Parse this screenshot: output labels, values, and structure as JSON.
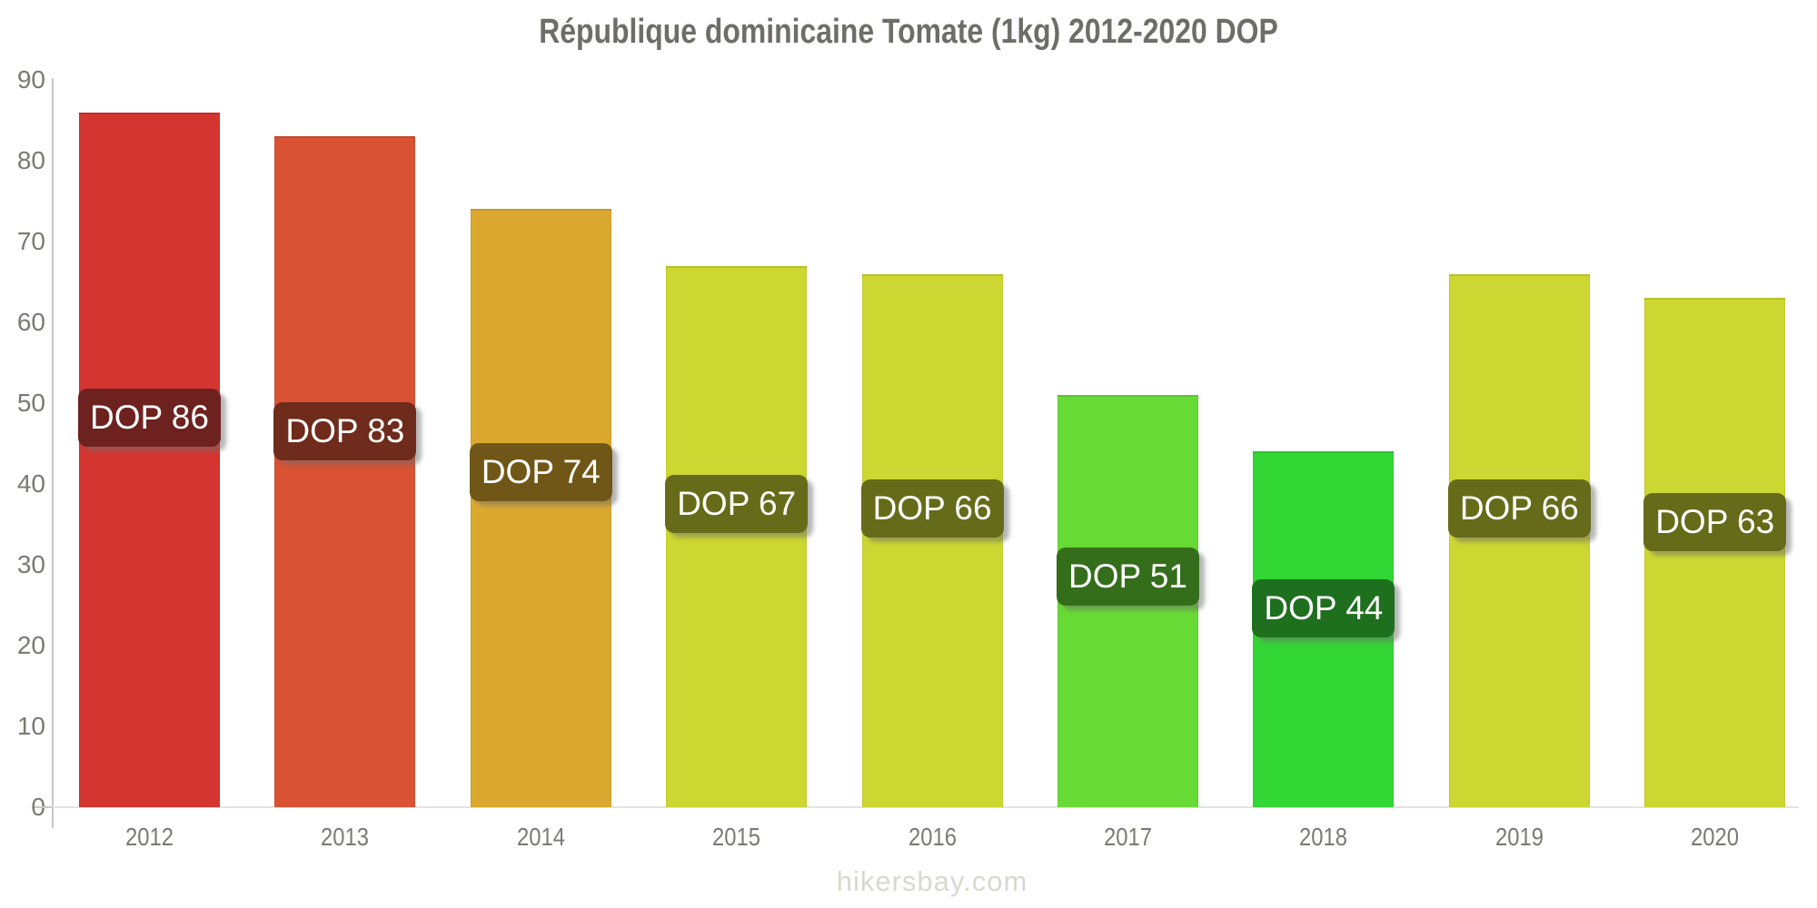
{
  "chart_data": {
    "type": "bar",
    "title": "République dominicaine Tomate (1kg) 2012-2020 DOP",
    "categories": [
      "2012",
      "2013",
      "2014",
      "2015",
      "2016",
      "2017",
      "2018",
      "2019",
      "2020"
    ],
    "values": [
      86,
      83,
      74,
      67,
      66,
      51,
      44,
      66,
      63
    ],
    "bar_labels": [
      "DOP 86",
      "DOP 83",
      "DOP 74",
      "DOP 67",
      "DOP 66",
      "DOP 51",
      "DOP 44",
      "DOP 66",
      "DOP 63"
    ],
    "currency": "DOP",
    "xlabel": "",
    "ylabel": "",
    "ylim": [
      0,
      90
    ],
    "yticks": [
      0,
      10,
      20,
      30,
      40,
      50,
      60,
      70,
      80,
      90
    ],
    "grid": false,
    "legend": "none",
    "bar_colors": [
      "#d53531",
      "#d95233",
      "#dba92f",
      "#ccd731",
      "#ccd731",
      "#68da36",
      "#33d735",
      "#ccd731",
      "#ccd731"
    ],
    "label_colors": [
      "#6d2220",
      "#6f2b1b",
      "#715717",
      "#656b19",
      "#656b19",
      "#356e1b",
      "#1e6f1e",
      "#656b19",
      "#656b19"
    ],
    "footer": "hikersbay.com",
    "palette": {
      "title_text": "#6e6d69",
      "tick_text": "#7b7975",
      "axis_line": "#c7c7c7",
      "baseline": "#e3e3e1",
      "watermark_text": "#d8d8d2",
      "bar_label_text": "#ffffff"
    }
  }
}
